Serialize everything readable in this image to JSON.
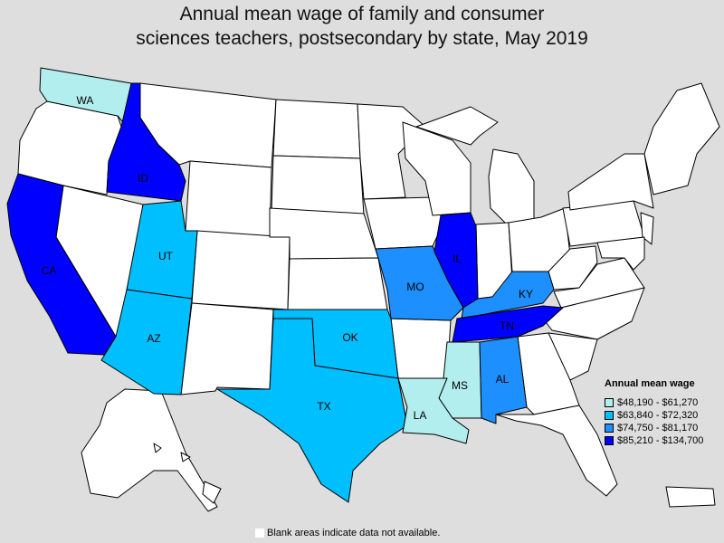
{
  "title_line1": "Annual mean wage of family and consumer",
  "title_line2": "sciences teachers, postsecondary by state, May 2019",
  "legend": {
    "title": "Annual mean wage",
    "items": [
      {
        "label": "$48,190 - $61,270",
        "color": "#b2eeee"
      },
      {
        "label": "$63,840 - $72,320",
        "color": "#00bfff"
      },
      {
        "label": "$74,750 - $81,170",
        "color": "#1e8fff"
      },
      {
        "label": "$85,210 - $134,700",
        "color": "#0000ff"
      }
    ]
  },
  "footnote": "Blank areas indicate data not available.",
  "state_labels": {
    "WA": "WA",
    "ID": "ID",
    "CA": "CA",
    "UT": "UT",
    "AZ": "AZ",
    "TX": "TX",
    "OK": "OK",
    "MO": "MO",
    "IL": "IL",
    "KY": "KY",
    "TN": "TN",
    "MS": "MS",
    "AL": "AL",
    "LA": "LA"
  },
  "colors": {
    "blank": "#ffffff",
    "background": "#dedede",
    "border": "#000000"
  }
}
